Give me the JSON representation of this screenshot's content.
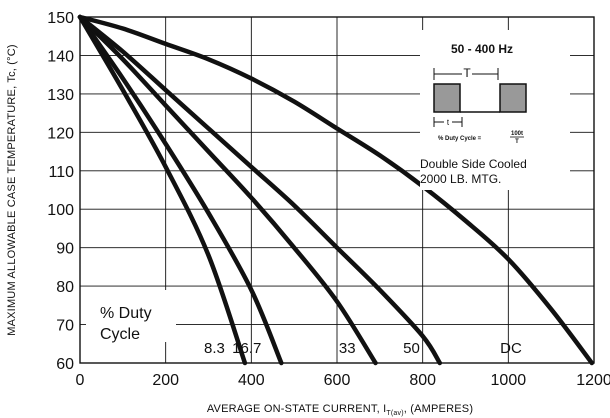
{
  "chart_data": {
    "type": "line",
    "title": "",
    "xlabel": "AVERAGE ON-STATE CURRENT, I",
    "xlabel_sub": "T(av)",
    "xlabel_tail": ", (AMPERES)",
    "ylabel": "MAXIMUM ALLOWABLE CASE TEMPERATURE, Tc, (°C)",
    "xlim": [
      0,
      1200
    ],
    "ylim": [
      60,
      150
    ],
    "x_ticks": [
      0,
      200,
      400,
      600,
      800,
      1000,
      1200
    ],
    "y_ticks": [
      60,
      70,
      80,
      90,
      100,
      110,
      120,
      130,
      140,
      150
    ],
    "grid": true,
    "series": [
      {
        "name": "8.3",
        "x": [
          0,
          100,
          200,
          300,
          385
        ],
        "y": [
          150,
          131,
          111,
          88,
          60
        ]
      },
      {
        "name": "16.7",
        "x": [
          0,
          100,
          200,
          300,
          400,
          470
        ],
        "y": [
          150,
          134,
          117,
          99,
          79,
          60
        ]
      },
      {
        "name": "33",
        "x": [
          0,
          100,
          200,
          300,
          400,
          500,
          600,
          690
        ],
        "y": [
          150,
          139,
          127,
          115,
          103,
          90,
          76,
          60
        ]
      },
      {
        "name": "50",
        "x": [
          0,
          100,
          200,
          300,
          400,
          500,
          600,
          700,
          800,
          840
        ],
        "y": [
          150,
          141,
          131,
          121,
          111,
          101,
          90,
          79,
          67,
          60
        ]
      },
      {
        "name": "DC",
        "x": [
          0,
          100,
          200,
          300,
          400,
          500,
          600,
          700,
          800,
          900,
          1000,
          1100,
          1195
        ],
        "y": [
          150,
          147,
          143,
          139,
          134,
          128,
          121,
          114,
          106,
          97,
          87,
          74,
          60
        ]
      }
    ],
    "legend_note": {
      "line1": "% Duty",
      "line2": "Cycle"
    },
    "inset": {
      "frequency": "50 - 400 Hz",
      "period_symbol": "T",
      "pulse_symbol": "t",
      "formula_prefix": "% Duty Cycle =",
      "formula_num": "100t",
      "formula_den": "T",
      "note_line1": "Double Side Cooled",
      "note_line2": "2000 LB. MTG."
    }
  }
}
